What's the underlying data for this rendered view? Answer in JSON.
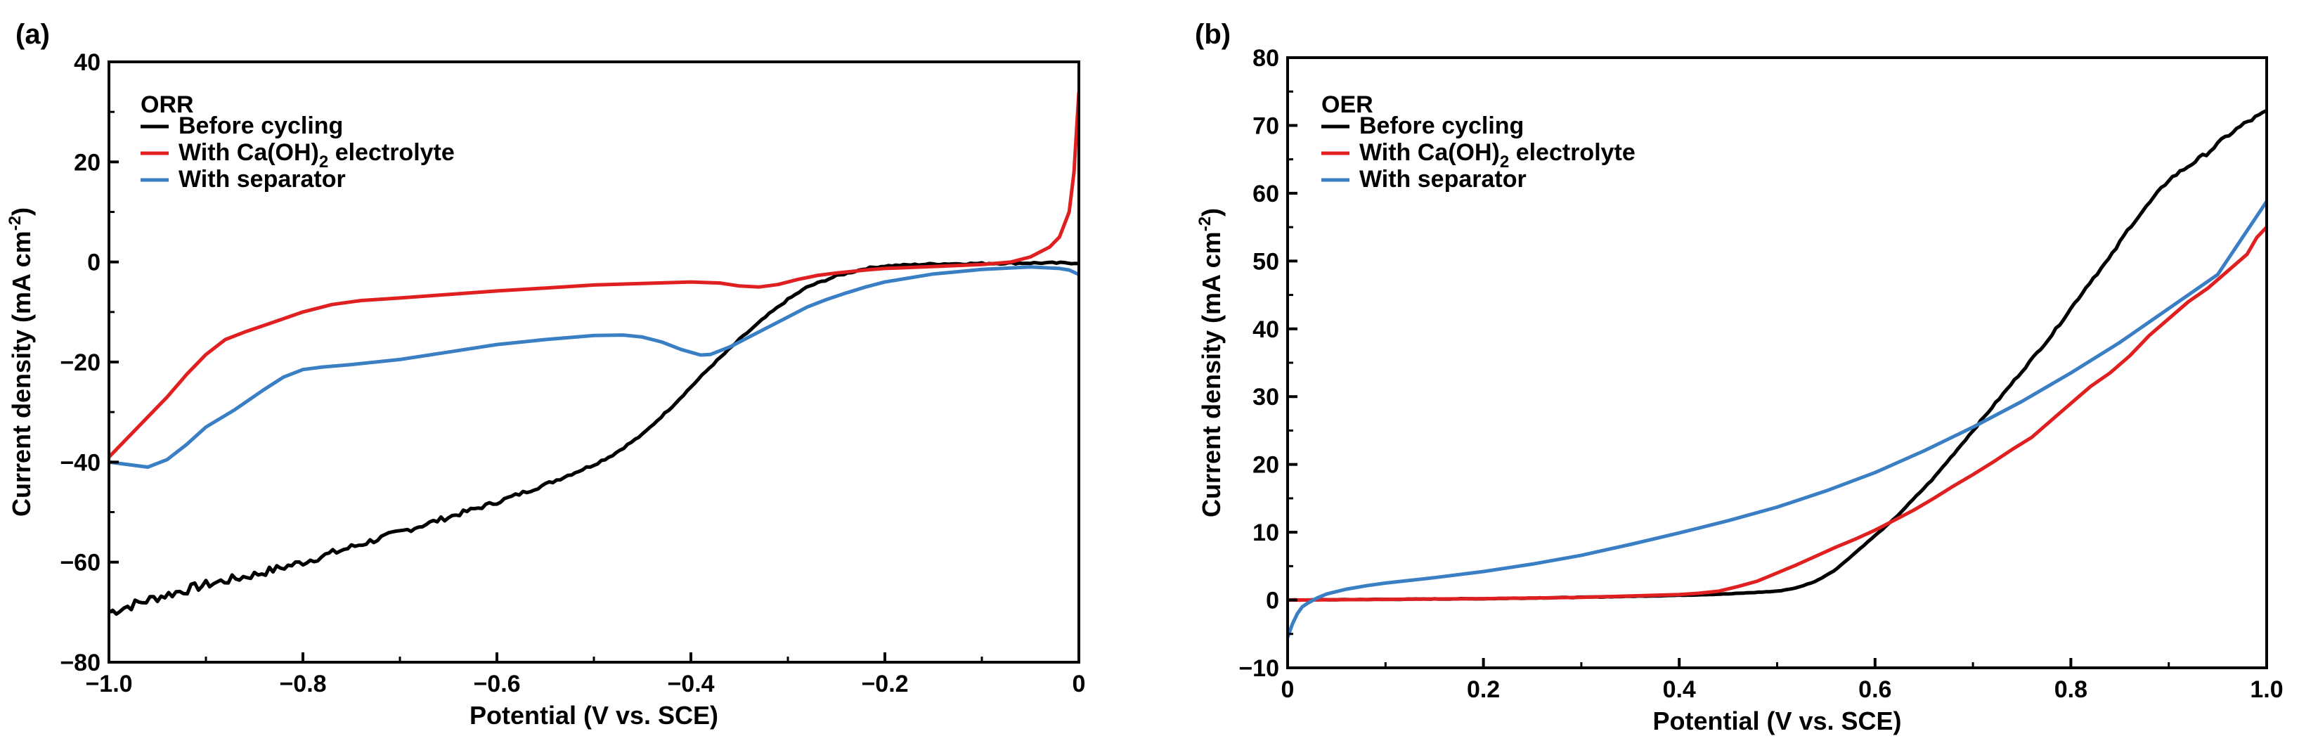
{
  "chart_data": [
    {
      "type": "line",
      "panel_label": "(a)",
      "title": "",
      "xlabel": "Potential (V vs. SCE)",
      "ylabel": "Current density (mA cm",
      "ylabel_sup": "-2",
      "ylabel_close": ")",
      "xlim": [
        -1.0,
        0.0
      ],
      "ylim": [
        -80,
        40
      ],
      "grid": false,
      "x_ticks": [
        {
          "value": -1.0,
          "label": "−1.0"
        },
        {
          "value": -0.8,
          "label": "−0.8"
        },
        {
          "value": -0.6,
          "label": "−0.6"
        },
        {
          "value": -0.4,
          "label": "−0.4"
        },
        {
          "value": -0.2,
          "label": "−0.2"
        },
        {
          "value": 0.0,
          "label": "0"
        }
      ],
      "y_ticks": [
        {
          "value": -80,
          "label": "−80"
        },
        {
          "value": -60,
          "label": "−60"
        },
        {
          "value": -40,
          "label": "−40"
        },
        {
          "value": -20,
          "label": "−20"
        },
        {
          "value": 0,
          "label": "0"
        },
        {
          "value": 20,
          "label": "20"
        },
        {
          "value": 40,
          "label": "40"
        }
      ],
      "legend": {
        "title": "ORR",
        "placement": "top-left",
        "items": [
          {
            "text": "Before cycling",
            "sub": "",
            "tail": ""
          },
          {
            "text": "With Ca(OH)",
            "sub": "2",
            "tail": " electrolyte"
          },
          {
            "text": "With separator",
            "sub": "",
            "tail": ""
          }
        ]
      },
      "series": [
        {
          "name": "Before cycling",
          "color": "#000000",
          "noise": 1.1,
          "x": [
            -1.0,
            -0.95,
            -0.9,
            -0.85,
            -0.8,
            -0.75,
            -0.7,
            -0.65,
            -0.6,
            -0.55,
            -0.5,
            -0.48,
            -0.45,
            -0.42,
            -0.4,
            -0.38,
            -0.35,
            -0.32,
            -0.3,
            -0.28,
            -0.25,
            -0.22,
            -0.2,
            -0.15,
            -0.1,
            -0.05,
            0.0
          ],
          "y": [
            -70,
            -67,
            -64.5,
            -62.5,
            -60,
            -57,
            -54,
            -51,
            -48,
            -44.5,
            -40.5,
            -38.5,
            -34.5,
            -29,
            -25,
            -21,
            -15.5,
            -10.5,
            -7.5,
            -5,
            -2.8,
            -1.3,
            -0.8,
            -0.4,
            -0.3,
            -0.2,
            -0.2
          ]
        },
        {
          "name": "With Ca(OH)2 electrolyte",
          "color": "#e02020",
          "noise": 0,
          "x": [
            -1.0,
            -0.97,
            -0.94,
            -0.92,
            -0.9,
            -0.88,
            -0.86,
            -0.83,
            -0.8,
            -0.77,
            -0.74,
            -0.7,
            -0.65,
            -0.6,
            -0.55,
            -0.5,
            -0.45,
            -0.4,
            -0.37,
            -0.35,
            -0.33,
            -0.31,
            -0.29,
            -0.27,
            -0.25,
            -0.22,
            -0.2,
            -0.15,
            -0.1,
            -0.07,
            -0.05,
            -0.03,
            -0.02,
            -0.01,
            -0.005,
            0.0
          ],
          "y": [
            -39,
            -33,
            -27,
            -22.5,
            -18.5,
            -15.5,
            -14,
            -12,
            -10,
            -8.5,
            -7.7,
            -7.2,
            -6.5,
            -5.8,
            -5.2,
            -4.6,
            -4.3,
            -4,
            -4.2,
            -4.8,
            -5,
            -4.5,
            -3.5,
            -2.7,
            -2.2,
            -1.6,
            -1.3,
            -0.9,
            -0.5,
            0,
            1,
            3,
            5,
            10,
            18,
            34
          ]
        },
        {
          "name": "With separator",
          "color": "#3a7ec4",
          "noise": 0,
          "x": [
            -1.0,
            -0.98,
            -0.96,
            -0.94,
            -0.92,
            -0.9,
            -0.87,
            -0.84,
            -0.82,
            -0.8,
            -0.78,
            -0.75,
            -0.7,
            -0.65,
            -0.6,
            -0.55,
            -0.5,
            -0.47,
            -0.45,
            -0.43,
            -0.41,
            -0.39,
            -0.38,
            -0.36,
            -0.34,
            -0.32,
            -0.3,
            -0.28,
            -0.26,
            -0.24,
            -0.22,
            -0.2,
            -0.15,
            -0.1,
            -0.05,
            -0.02,
            -0.01,
            0.0
          ],
          "y": [
            -40,
            -40.5,
            -41,
            -39.5,
            -36.5,
            -33,
            -29.5,
            -25.5,
            -23,
            -21.5,
            -21,
            -20.5,
            -19.5,
            -18,
            -16.5,
            -15.5,
            -14.7,
            -14.6,
            -15,
            -16,
            -17.5,
            -18.6,
            -18.5,
            -17,
            -15,
            -13,
            -11,
            -9,
            -7.5,
            -6.2,
            -5,
            -4,
            -2.4,
            -1.5,
            -1,
            -1.3,
            -1.6,
            -2.5
          ]
        }
      ]
    },
    {
      "type": "line",
      "panel_label": "(b)",
      "title": "",
      "xlabel": "Potential (V vs. SCE)",
      "ylabel": "Current density (mA cm",
      "ylabel_sup": "-2",
      "ylabel_close": ")",
      "xlim": [
        0.0,
        1.0
      ],
      "ylim": [
        -10,
        80
      ],
      "grid": false,
      "x_ticks": [
        {
          "value": 0.0,
          "label": "0"
        },
        {
          "value": 0.2,
          "label": "0.2"
        },
        {
          "value": 0.4,
          "label": "0.4"
        },
        {
          "value": 0.6,
          "label": "0.6"
        },
        {
          "value": 0.8,
          "label": "0.8"
        },
        {
          "value": 1.0,
          "label": "1.0"
        }
      ],
      "y_ticks": [
        {
          "value": -10,
          "label": "−10"
        },
        {
          "value": 0,
          "label": "0"
        },
        {
          "value": 10,
          "label": "10"
        },
        {
          "value": 20,
          "label": "20"
        },
        {
          "value": 30,
          "label": "30"
        },
        {
          "value": 40,
          "label": "40"
        },
        {
          "value": 50,
          "label": "50"
        },
        {
          "value": 60,
          "label": "60"
        },
        {
          "value": 70,
          "label": "70"
        },
        {
          "value": 80,
          "label": "80"
        }
      ],
      "legend": {
        "title": "OER",
        "placement": "top-left",
        "items": [
          {
            "text": "Before cycling",
            "sub": "",
            "tail": ""
          },
          {
            "text": "With Ca(OH)",
            "sub": "2",
            "tail": " electrolyte"
          },
          {
            "text": "With separator",
            "sub": "",
            "tail": ""
          }
        ]
      },
      "series": [
        {
          "name": "Before cycling",
          "color": "#000000",
          "noise": 0.35,
          "x": [
            0.0,
            0.1,
            0.2,
            0.3,
            0.4,
            0.45,
            0.5,
            0.52,
            0.54,
            0.56,
            0.58,
            0.6,
            0.62,
            0.64,
            0.66,
            0.68,
            0.7,
            0.72,
            0.74,
            0.76,
            0.78,
            0.8,
            0.82,
            0.84,
            0.86,
            0.88,
            0.9,
            0.92,
            0.94,
            0.96,
            0.98,
            1.0
          ],
          "y": [
            0,
            0.1,
            0.2,
            0.4,
            0.7,
            0.9,
            1.3,
            1.8,
            2.8,
            4.5,
            7,
            9.5,
            12,
            15,
            18,
            21.5,
            25,
            28.5,
            32,
            35.5,
            39,
            43,
            47,
            50.5,
            55,
            58.5,
            62,
            64,
            66,
            68.5,
            70.5,
            72
          ]
        },
        {
          "name": "With Ca(OH)2 electrolyte",
          "color": "#e02020",
          "noise": 0,
          "x": [
            0.0,
            0.1,
            0.2,
            0.3,
            0.4,
            0.42,
            0.44,
            0.46,
            0.48,
            0.5,
            0.52,
            0.54,
            0.56,
            0.58,
            0.6,
            0.62,
            0.64,
            0.66,
            0.68,
            0.7,
            0.72,
            0.74,
            0.76,
            0.78,
            0.8,
            0.82,
            0.84,
            0.86,
            0.88,
            0.9,
            0.92,
            0.94,
            0.96,
            0.98,
            0.99,
            1.0
          ],
          "y": [
            0,
            0.1,
            0.2,
            0.4,
            0.8,
            1,
            1.3,
            2,
            2.8,
            4,
            5.2,
            6.5,
            7.8,
            9,
            10.3,
            11.8,
            13.3,
            15,
            16.8,
            18.5,
            20.3,
            22.2,
            24,
            26.5,
            29,
            31.5,
            33.5,
            36,
            39,
            41.5,
            44,
            46,
            48.5,
            51,
            53.5,
            55
          ]
        },
        {
          "name": "With separator",
          "color": "#3a7ec4",
          "noise": 0,
          "x": [
            0.0,
            0.005,
            0.01,
            0.015,
            0.02,
            0.03,
            0.04,
            0.06,
            0.08,
            0.1,
            0.15,
            0.2,
            0.25,
            0.3,
            0.35,
            0.4,
            0.45,
            0.5,
            0.55,
            0.6,
            0.65,
            0.7,
            0.75,
            0.8,
            0.85,
            0.9,
            0.95,
            1.0
          ],
          "y": [
            -5.5,
            -3.5,
            -2,
            -1,
            -0.5,
            0.3,
            0.9,
            1.6,
            2.1,
            2.5,
            3.3,
            4.2,
            5.3,
            6.6,
            8.2,
            9.9,
            11.7,
            13.7,
            16.1,
            18.8,
            22,
            25.5,
            29.3,
            33.5,
            38,
            43,
            48,
            58.8
          ]
        }
      ]
    }
  ]
}
